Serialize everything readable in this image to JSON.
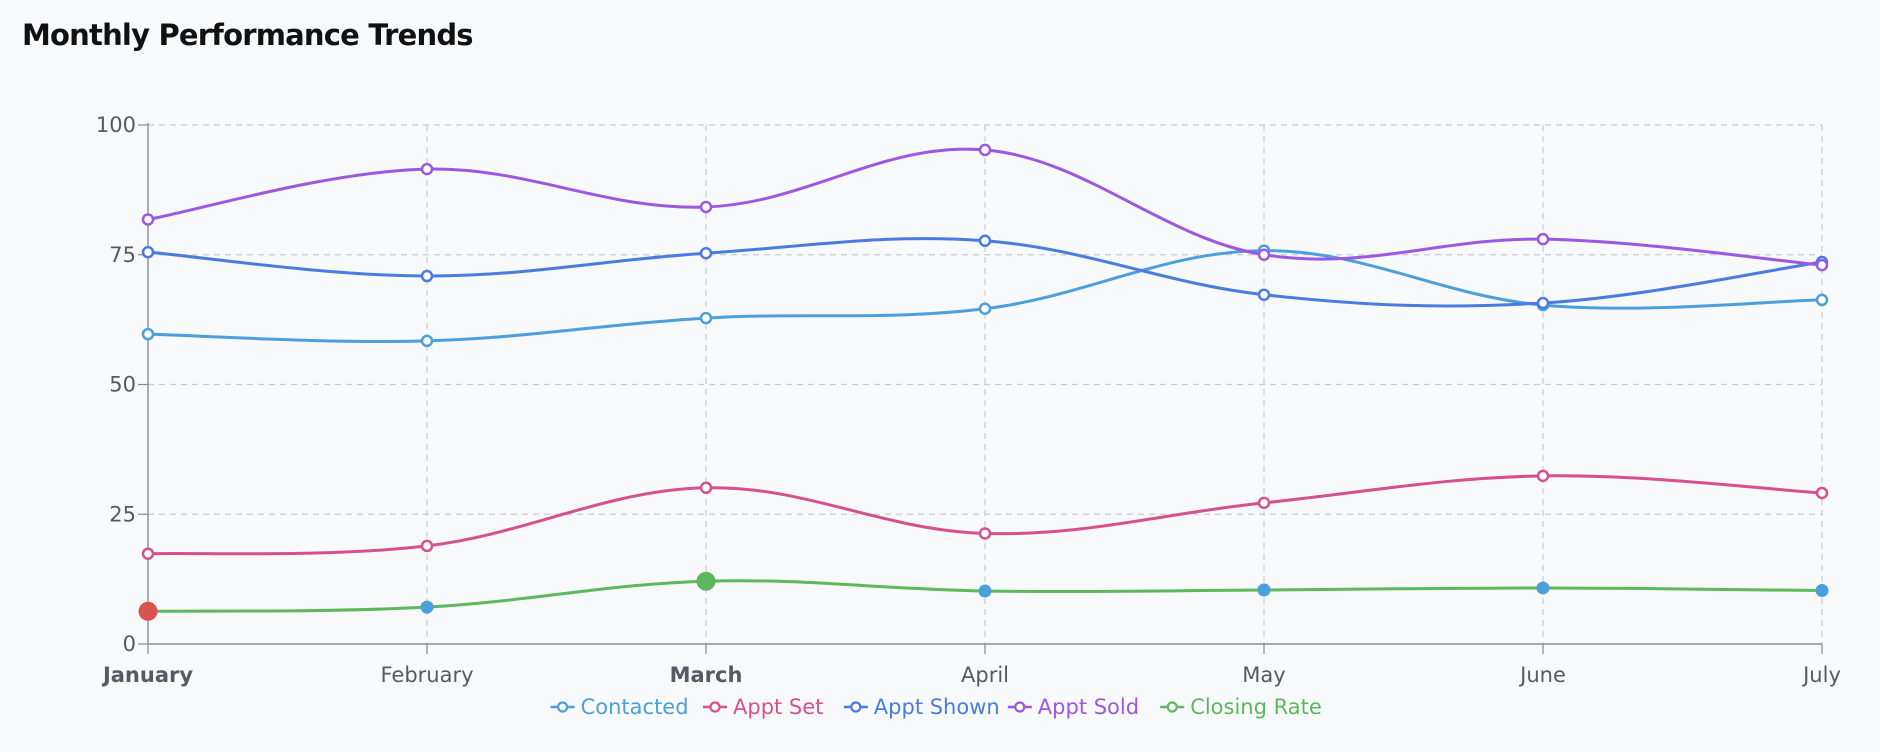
{
  "title": "Monthly Performance Trends",
  "chart_data": {
    "type": "line",
    "title": "Monthly Performance Trends",
    "xlabel": "",
    "ylabel": "",
    "categories": [
      "January",
      "February",
      "March",
      "April",
      "May",
      "June",
      "July"
    ],
    "ylim": [
      0,
      100
    ],
    "yticks": [
      0,
      25,
      50,
      75,
      100
    ],
    "grid": true,
    "legend_position": "bottom",
    "highlighted_categories": [
      {
        "label": "January",
        "color": "#d9534f"
      },
      {
        "label": "March",
        "color": "#5cb85c"
      }
    ],
    "series": [
      {
        "name": "Contacted",
        "color": "#4a9fdc",
        "values": [
          59.7,
          58.4,
          62.8,
          64.6,
          75.8,
          65.3,
          66.3
        ]
      },
      {
        "name": "Appt Set",
        "color": "#d6508e",
        "values": [
          17.4,
          18.9,
          30.1,
          21.3,
          27.2,
          32.4,
          29.1
        ]
      },
      {
        "name": "Appt Shown",
        "color": "#4a7be0",
        "values": [
          75.5,
          70.9,
          75.3,
          77.7,
          67.3,
          65.7,
          73.6
        ]
      },
      {
        "name": "Appt Sold",
        "color": "#9c58e0",
        "values": [
          81.8,
          91.5,
          84.2,
          95.2,
          75.0,
          78.0,
          73.0
        ]
      },
      {
        "name": "Closing Rate",
        "color": "#5cb85c",
        "values": [
          6.3,
          7.1,
          12.1,
          10.2,
          10.4,
          10.8,
          10.3
        ],
        "point_colors": [
          "#d9534f",
          "#4a9fdc",
          "#5cb85c",
          "#4a9fdc",
          "#4a9fdc",
          "#4a9fdc",
          "#4a9fdc"
        ],
        "large_points": [
          0,
          2
        ]
      }
    ]
  }
}
